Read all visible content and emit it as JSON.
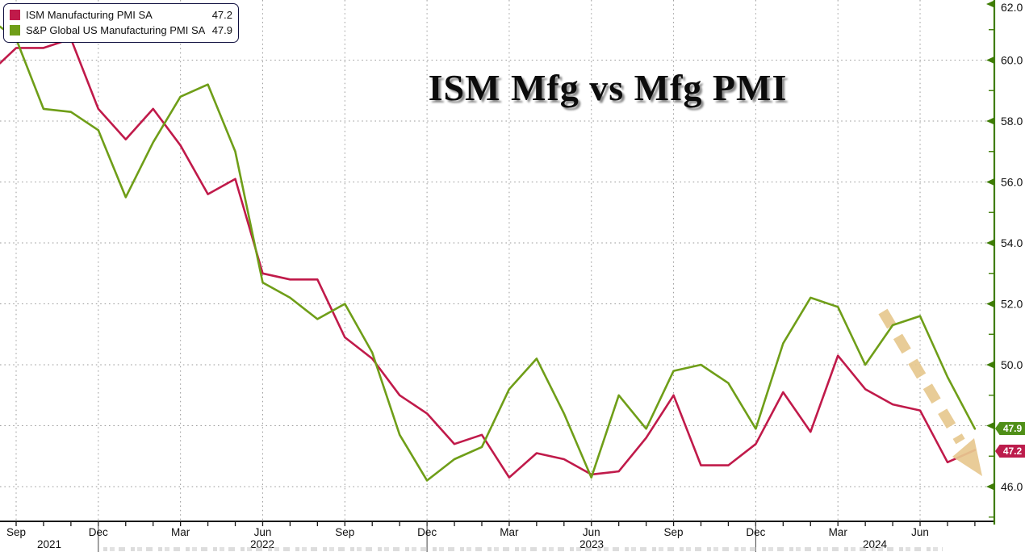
{
  "title": "ISM Mfg vs Mfg PMI",
  "legend": {
    "items": [
      {
        "label": "ISM Manufacturing PMI SA",
        "value": "47.2",
        "color": "#c01a4a"
      },
      {
        "label": "S&P Global US Manufacturing PMI SA",
        "value": "47.9",
        "color": "#6f9e18"
      }
    ]
  },
  "callouts": [
    {
      "text": "47.9",
      "bg": "#4f8f17"
    },
    {
      "text": "47.2",
      "bg": "#bc1c4c"
    }
  ],
  "colors": {
    "axis_green": "#3f7d05",
    "x_axis": "#1a1a1a",
    "grid": "#9b9b9b",
    "background": "#ffffff",
    "annotation_tan": "#e7c88f"
  },
  "chart_data": {
    "type": "line",
    "title": "ISM Mfg vs Mfg PMI",
    "xlabel": "",
    "ylabel": "",
    "ylim": [
      44.9,
      62.0
    ],
    "grid": true,
    "legend_position": "top-left",
    "x": [
      "Aug 2021",
      "Sep 2021",
      "Oct 2021",
      "Nov 2021",
      "Dec 2021",
      "Jan 2022",
      "Feb 2022",
      "Mar 2022",
      "Apr 2022",
      "May 2022",
      "Jun 2022",
      "Jul 2022",
      "Aug 2022",
      "Sep 2022",
      "Oct 2022",
      "Nov 2022",
      "Dec 2022",
      "Jan 2023",
      "Feb 2023",
      "Mar 2023",
      "Apr 2023",
      "May 2023",
      "Jun 2023",
      "Jul 2023",
      "Aug 2023",
      "Sep 2023",
      "Oct 2023",
      "Nov 2023",
      "Dec 2023",
      "Jan 2024",
      "Feb 2024",
      "Mar 2024",
      "Apr 2024",
      "May 2024",
      "Jun 2024",
      "Jul 2024",
      "Aug 2024"
    ],
    "series": [
      {
        "name": "ISM Manufacturing PMI SA",
        "color": "#c01a4a",
        "values": [
          59.9,
          60.4,
          60.4,
          60.7,
          58.4,
          57.4,
          58.4,
          57.2,
          55.6,
          56.1,
          53.0,
          52.8,
          52.8,
          50.9,
          50.2,
          49.0,
          48.4,
          47.4,
          47.7,
          46.3,
          47.1,
          46.9,
          46.4,
          46.5,
          47.6,
          49.0,
          46.7,
          46.7,
          47.4,
          49.1,
          47.8,
          50.3,
          49.2,
          48.7,
          48.5,
          46.8,
          47.2
        ]
      },
      {
        "name": "S&P Global US Manufacturing PMI SA",
        "color": "#6f9e18",
        "values": [
          61.1,
          60.7,
          58.4,
          58.3,
          57.7,
          55.5,
          57.3,
          58.8,
          59.2,
          57.0,
          52.7,
          52.2,
          51.5,
          52.0,
          50.4,
          47.7,
          46.2,
          46.9,
          47.3,
          49.2,
          50.2,
          48.4,
          46.3,
          49.0,
          47.9,
          49.8,
          50.0,
          49.4,
          47.9,
          50.7,
          52.2,
          51.9,
          50.0,
          51.3,
          51.6,
          49.6,
          47.9
        ]
      }
    ],
    "x_ticks": [
      {
        "i": 1,
        "label": "Sep"
      },
      {
        "i": 4,
        "label": "Dec"
      },
      {
        "i": 7,
        "label": "Mar"
      },
      {
        "i": 10,
        "label": "Jun"
      },
      {
        "i": 13,
        "label": "Sep"
      },
      {
        "i": 16,
        "label": "Dec"
      },
      {
        "i": 19,
        "label": "Mar"
      },
      {
        "i": 22,
        "label": "Jun"
      },
      {
        "i": 25,
        "label": "Sep"
      },
      {
        "i": 28,
        "label": "Dec"
      },
      {
        "i": 31,
        "label": "Mar"
      },
      {
        "i": 34,
        "label": "Jun"
      }
    ],
    "year_separators": [
      4,
      16,
      28
    ],
    "year_labels": [
      {
        "label": "2021",
        "from": -1,
        "to": 4
      },
      {
        "label": "2022",
        "from": 4,
        "to": 16
      },
      {
        "label": "2023",
        "from": 16,
        "to": 28
      },
      {
        "label": "2024",
        "from": 28,
        "to": 999
      }
    ],
    "y_ticks": [
      {
        "v": 46,
        "label": "46.0"
      },
      {
        "v": 48,
        "label": "48.0"
      },
      {
        "v": 50,
        "label": "50.0"
      },
      {
        "v": 52,
        "label": "52.0"
      },
      {
        "v": 54,
        "label": "54.0"
      },
      {
        "v": 56,
        "label": "56.0"
      },
      {
        "v": 58,
        "label": "58.0"
      },
      {
        "v": 60,
        "label": "60.0"
      },
      {
        "v": 62,
        "label": "62.0"
      }
    ],
    "annotation": {
      "type": "dashed-down-arrow",
      "color": "#e7c88f"
    }
  }
}
